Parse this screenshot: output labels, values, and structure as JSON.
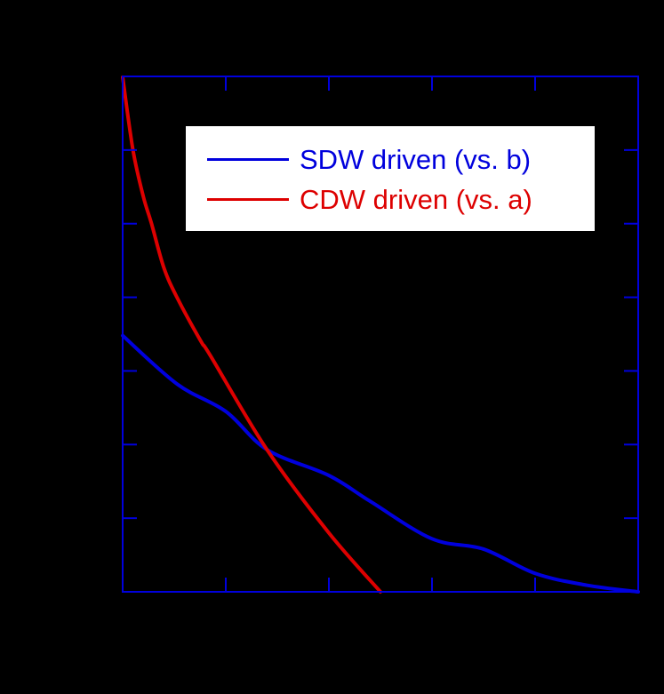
{
  "chart_data": {
    "type": "line",
    "title": "",
    "xlabel": "",
    "ylabel": "",
    "xlim": [
      0,
      5
    ],
    "ylim": [
      0,
      7
    ],
    "x_ticks": [
      0,
      1,
      2,
      3,
      4,
      5
    ],
    "y_ticks": [
      0,
      1,
      2,
      3,
      4,
      5,
      6,
      7
    ],
    "x_tick_labels": [],
    "y_tick_labels": [],
    "grid": false,
    "legend_position": "upper right",
    "background": "#000000",
    "axis_color": "#0000dd",
    "series": [
      {
        "name": "SDW driven (vs. b)",
        "color": "#0000dd",
        "x": [
          0.0,
          0.53,
          1.0,
          1.4,
          2.0,
          2.4,
          3.0,
          3.5,
          4.0,
          4.5,
          5.0
        ],
        "y": [
          3.48,
          2.82,
          2.45,
          1.93,
          1.58,
          1.23,
          0.72,
          0.58,
          0.25,
          0.09,
          0.0
        ]
      },
      {
        "name": "CDW driven (vs. a)",
        "color": "#dd0000",
        "x": [
          0.0,
          0.1,
          0.2,
          0.28,
          0.4,
          0.53,
          0.76,
          0.85,
          1.4,
          2.0,
          2.5
        ],
        "y": [
          6.99,
          6.0,
          5.37,
          5.0,
          4.4,
          3.99,
          3.4,
          3.21,
          1.93,
          0.8,
          0.0
        ]
      }
    ]
  },
  "legend": {
    "items": [
      {
        "label": "SDW driven (vs. b)",
        "color": "#0000dd"
      },
      {
        "label": "CDW driven (vs. a)",
        "color": "#dd0000"
      }
    ]
  }
}
